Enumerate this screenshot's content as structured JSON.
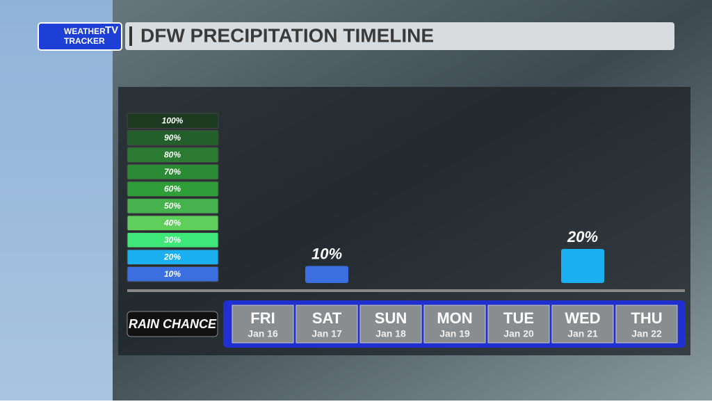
{
  "logo": {
    "line1": "WEATHER",
    "badge": "TV",
    "line2": "TRACKER"
  },
  "chart_data": {
    "type": "bar",
    "title": "DFW PRECIPITATION TIMELINE",
    "row_label": "RAIN CHANCE",
    "categories": [
      "FRI",
      "SAT",
      "SUN",
      "MON",
      "TUE",
      "WED",
      "THU"
    ],
    "dates": [
      "Jan 16",
      "Jan 17",
      "Jan 18",
      "Jan 19",
      "Jan 20",
      "Jan 21",
      "Jan 22"
    ],
    "values": [
      null,
      10,
      null,
      null,
      null,
      20,
      null
    ],
    "value_labels": [
      null,
      "10%",
      null,
      null,
      null,
      "20%",
      null
    ],
    "ylim": [
      0,
      100
    ],
    "yticks": [
      {
        "value": 10,
        "label": "10%"
      },
      {
        "value": 20,
        "label": "20%"
      },
      {
        "value": 30,
        "label": "30%"
      },
      {
        "value": 40,
        "label": "40%"
      },
      {
        "value": 50,
        "label": "50%"
      },
      {
        "value": 60,
        "label": "60%"
      },
      {
        "value": 70,
        "label": "70%"
      },
      {
        "value": 80,
        "label": "80%"
      },
      {
        "value": 90,
        "label": "90%"
      },
      {
        "value": 100,
        "label": "100%"
      }
    ],
    "scale_colors": [
      "#3b6fe0",
      "#1ab0ef",
      "#3ee878",
      "#5ecf5a",
      "#45b24e",
      "#2f9d38",
      "#2b8a34",
      "#2a7a31",
      "#235f2a",
      "#1c3a1f"
    ]
  }
}
